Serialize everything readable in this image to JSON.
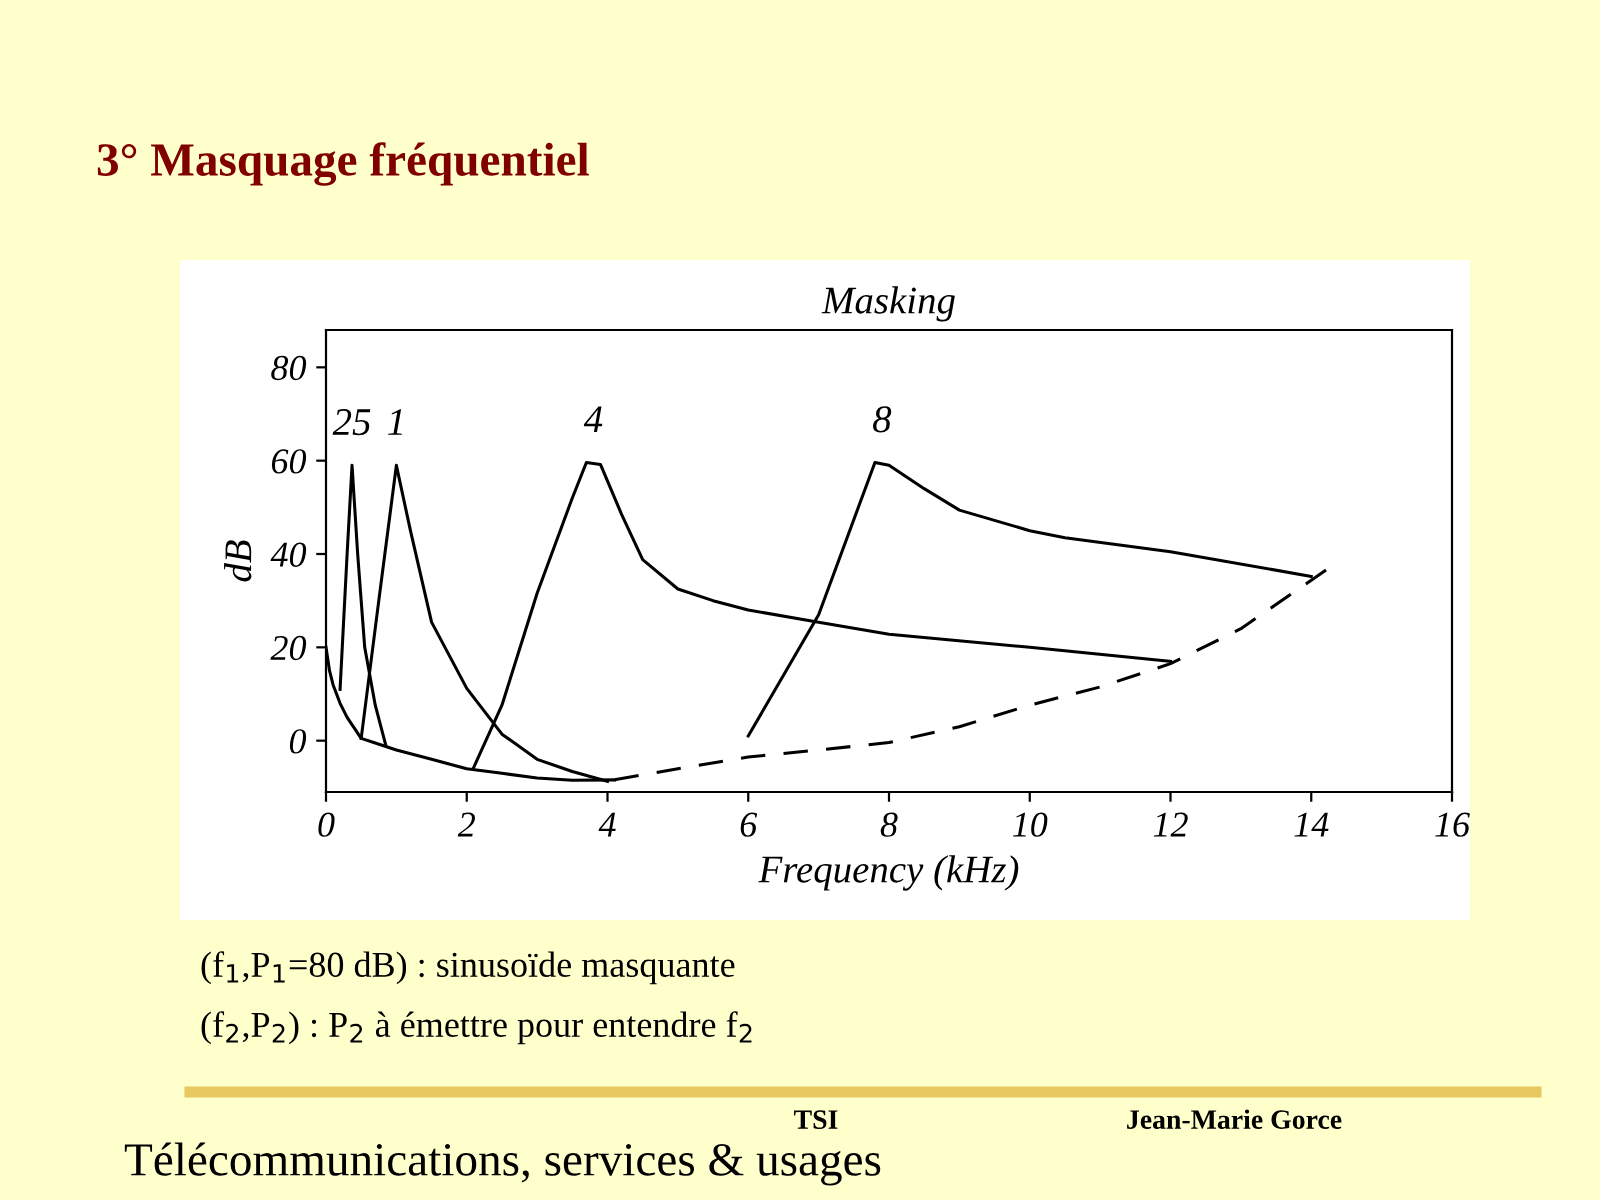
{
  "chart_data": {
    "type": "line",
    "title": "3° Masquage fréquentiel",
    "subtitle": "Masking",
    "xlabel": "Frequency (kHz)",
    "ylabel": "dB",
    "xlim": [
      0,
      16
    ],
    "ylim": [
      -11,
      88
    ],
    "xticks": [
      0,
      2,
      4,
      6,
      8,
      10,
      12,
      14,
      16
    ],
    "yticks": [
      0,
      20,
      40,
      60,
      80
    ],
    "grid": false,
    "series": [
      {
        "color": "#000000",
        "line_style": "solid",
        "x": [
          0,
          0.05,
          0.1,
          0.2,
          0.3,
          0.5,
          0.7,
          1,
          1.5,
          2,
          2.5,
          3,
          3.5,
          4.1
        ],
        "values": [
          20,
          15,
          12,
          8,
          5,
          0.5,
          -0.5,
          -2,
          -4,
          -6,
          -7,
          -8,
          -8.5,
          -8.4
        ]
      },
      {
        "color": "#000000",
        "line_style": "dashed",
        "x": [
          4.1,
          5,
          6,
          7,
          8,
          9,
          10,
          11,
          12,
          13,
          14.3
        ],
        "values": [
          -8.4,
          -6,
          -3.5,
          -2,
          -0.4,
          3,
          7.6,
          11.5,
          16.5,
          24,
          37.5
        ]
      },
      {
        "color": "#000000",
        "line_style": "solid",
        "x": [
          0.2,
          0.3,
          0.37,
          0.45,
          0.55,
          0.7,
          0.85
        ],
        "values": [
          11,
          40,
          59,
          40,
          20,
          7.6,
          -1
        ]
      },
      {
        "color": "#000000",
        "line_style": "solid",
        "x": [
          0.5,
          0.75,
          1.0,
          1.2,
          1.5,
          2,
          2.5,
          3,
          3.5,
          4
        ],
        "values": [
          0.5,
          30,
          59,
          45,
          25.4,
          11.2,
          1.4,
          -4,
          -6.6,
          -8.7
        ]
      },
      {
        "color": "#000000",
        "line_style": "solid",
        "x": [
          2.1,
          2.5,
          3,
          3.5,
          3.7,
          3.9,
          4.2,
          4.5,
          5,
          5.5,
          6,
          7,
          8,
          10,
          12
        ],
        "values": [
          -5.7,
          7.6,
          31.6,
          52,
          59.6,
          59.2,
          48.5,
          38.8,
          32.5,
          30,
          28,
          25.4,
          22.8,
          20,
          17
        ]
      },
      {
        "color": "#000000",
        "line_style": "solid",
        "x": [
          6,
          7,
          7.8,
          8,
          8.5,
          9,
          10,
          10.5,
          12,
          14
        ],
        "values": [
          1,
          27,
          59.6,
          59,
          54,
          49.4,
          45,
          43.5,
          40.5,
          35.2
        ]
      }
    ],
    "annotations": [
      {
        "text": "25",
        "x": 0.37,
        "y": 59
      },
      {
        "text": "1",
        "x": 1.0,
        "y": 59
      },
      {
        "text": "4",
        "x": 3.8,
        "y": 59.6
      },
      {
        "text": "8",
        "x": 7.9,
        "y": 59.6
      },
      "(f$_{1}$,P$_{1}$=80 dB) : sinusoïde masquante",
      "(f$_{2}$,P$_{2}$) : P$_{2}$ à émettre pour entendre f$_{2}$",
      "TSI",
      "Jean-Marie Gorce",
      "Télécommunications, services & usages"
    ]
  }
}
